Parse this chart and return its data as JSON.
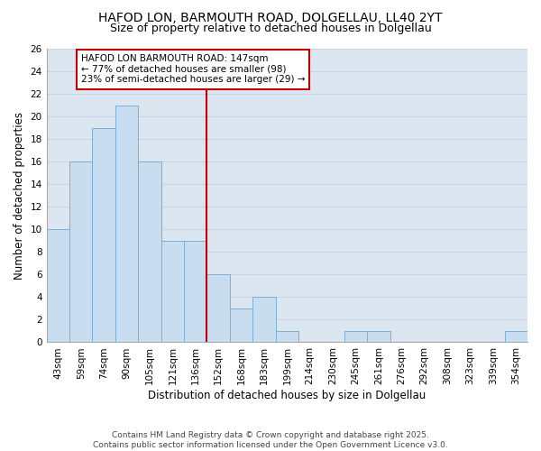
{
  "title_line1": "HAFOD LON, BARMOUTH ROAD, DOLGELLAU, LL40 2YT",
  "title_line2": "Size of property relative to detached houses in Dolgellau",
  "xlabel": "Distribution of detached houses by size in Dolgellau",
  "ylabel": "Number of detached properties",
  "bar_labels": [
    "43sqm",
    "59sqm",
    "74sqm",
    "90sqm",
    "105sqm",
    "121sqm",
    "136sqm",
    "152sqm",
    "168sqm",
    "183sqm",
    "199sqm",
    "214sqm",
    "230sqm",
    "245sqm",
    "261sqm",
    "276sqm",
    "292sqm",
    "308sqm",
    "323sqm",
    "339sqm",
    "354sqm"
  ],
  "bar_values": [
    10,
    16,
    19,
    21,
    16,
    9,
    9,
    6,
    3,
    4,
    1,
    0,
    0,
    1,
    1,
    0,
    0,
    0,
    0,
    0,
    1
  ],
  "bar_color": "#c9ddf0",
  "bar_edge_color": "#7bafd4",
  "vline_color": "#c00000",
  "annotation_text": "HAFOD LON BARMOUTH ROAD: 147sqm\n← 77% of detached houses are smaller (98)\n23% of semi-detached houses are larger (29) →",
  "annotation_box_color": "#c00000",
  "annotation_box_fill": "#ffffff",
  "ylim": [
    0,
    26
  ],
  "yticks": [
    0,
    2,
    4,
    6,
    8,
    10,
    12,
    14,
    16,
    18,
    20,
    22,
    24,
    26
  ],
  "grid_color": "#c8d4e3",
  "background_color": "#dce6f1",
  "footer_text": "Contains HM Land Registry data © Crown copyright and database right 2025.\nContains public sector information licensed under the Open Government Licence v3.0.",
  "title_fontsize": 10,
  "subtitle_fontsize": 9,
  "axis_label_fontsize": 8.5,
  "tick_fontsize": 7.5,
  "annotation_fontsize": 7.5,
  "footer_fontsize": 6.5
}
